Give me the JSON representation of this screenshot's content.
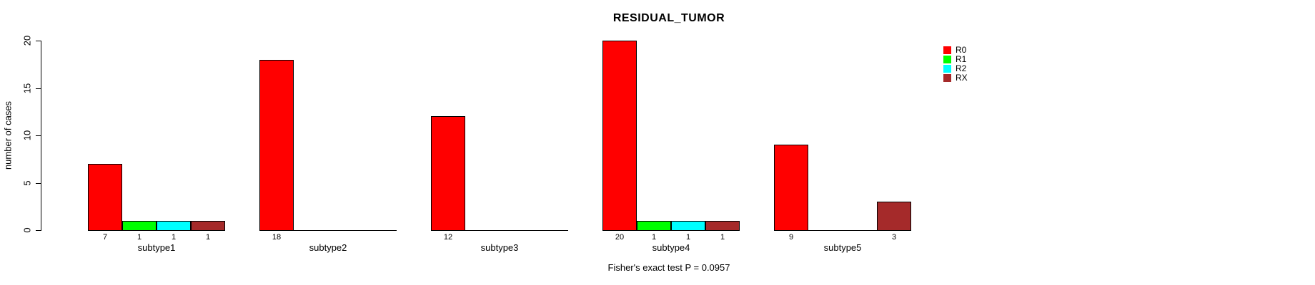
{
  "chart_data": {
    "type": "bar",
    "title": "RESIDUAL_TUMOR",
    "xlabel": "",
    "ylabel": "number of cases",
    "categories": [
      "subtype1",
      "subtype2",
      "subtype3",
      "subtype4",
      "subtype5"
    ],
    "series": [
      {
        "name": "R0",
        "color": "#FF0000",
        "values": [
          7,
          18,
          12,
          20,
          9
        ]
      },
      {
        "name": "R1",
        "color": "#00FF00",
        "values": [
          1,
          0,
          0,
          1,
          0
        ]
      },
      {
        "name": "R2",
        "color": "#00FFFF",
        "values": [
          1,
          0,
          0,
          1,
          0
        ]
      },
      {
        "name": "RX",
        "color": "#A52A2A",
        "values": [
          1,
          0,
          0,
          1,
          3
        ]
      }
    ],
    "yticks": [
      0,
      5,
      10,
      15,
      20
    ],
    "ylim": [
      0,
      20
    ],
    "grid": false,
    "legend_position": "right",
    "value_labels_shown_for_nonzero_bars": true,
    "annotation": "Fisher's exact test P = 0.0957"
  }
}
